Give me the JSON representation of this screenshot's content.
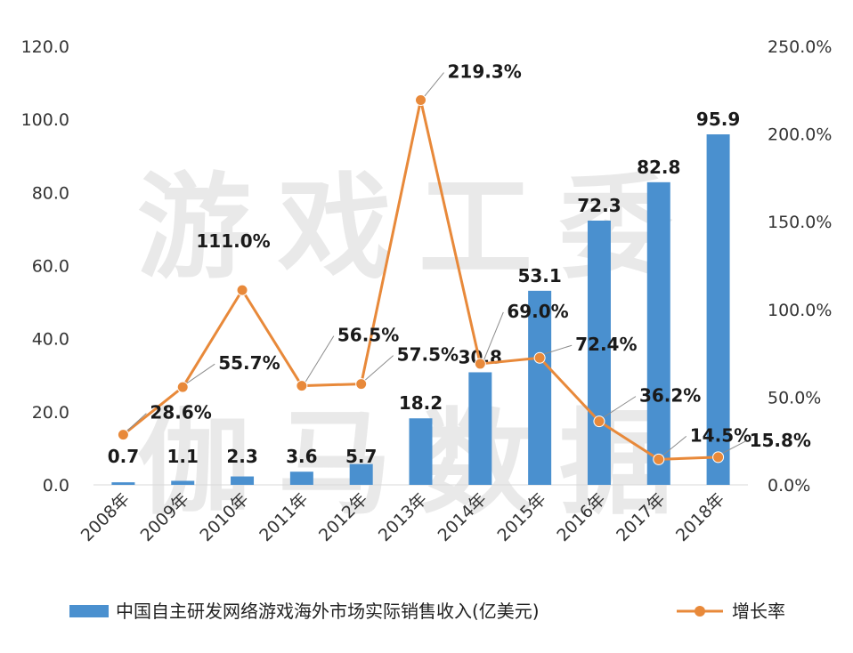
{
  "chart_data": {
    "type": "bar",
    "categories": [
      "2008年",
      "2009年",
      "2010年",
      "2011年",
      "2012年",
      "2013年",
      "2014年",
      "2015年",
      "2016年",
      "2017年",
      "2018年"
    ],
    "series": [
      {
        "name": "中国自主研发网络游戏海外市场实际销售收入(亿美元)",
        "type": "bar",
        "axis": "left",
        "values": [
          0.7,
          1.1,
          2.3,
          3.6,
          5.7,
          18.2,
          30.8,
          53.1,
          72.3,
          82.8,
          95.9
        ],
        "labels": [
          "0.7",
          "1.1",
          "2.3",
          "3.6",
          "5.7",
          "18.2",
          "30.8",
          "53.1",
          "72.3",
          "82.8",
          "95.9"
        ]
      },
      {
        "name": "增长率",
        "type": "line",
        "axis": "right",
        "values": [
          28.6,
          55.7,
          111.0,
          56.5,
          57.5,
          219.3,
          69.0,
          72.4,
          36.2,
          14.5,
          15.8
        ],
        "labels": [
          "28.6%",
          "55.7%",
          "111.0%",
          "56.5%",
          "57.5%",
          "219.3%",
          "69.0%",
          "72.4%",
          "36.2%",
          "14.5%",
          "15.8%"
        ]
      }
    ],
    "y_left": {
      "ticks": [
        "0.0",
        "20.0",
        "40.0",
        "60.0",
        "80.0",
        "100.0",
        "120.0"
      ],
      "ylim": [
        0,
        120
      ]
    },
    "y_right": {
      "ticks": [
        "0.0%",
        "50.0%",
        "100.0%",
        "150.0%",
        "200.0%",
        "250.0%"
      ],
      "ylim": [
        0,
        250
      ]
    },
    "legend_position": "bottom",
    "grid": false,
    "colors": {
      "bar": "#4a90cf",
      "line": "#e8893a",
      "marker": "#e8893a"
    }
  },
  "watermark": "游戏工委 伽马数据"
}
